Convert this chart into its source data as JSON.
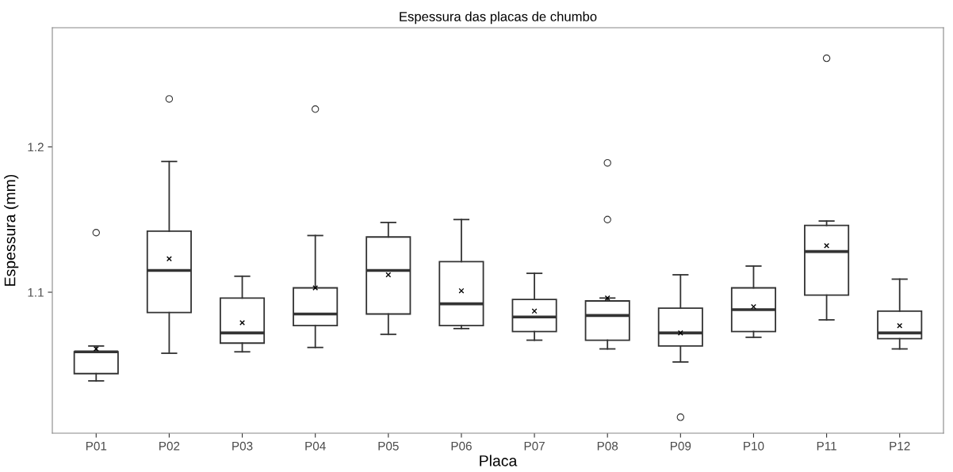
{
  "chart_data": {
    "type": "box",
    "title": "Espessura das placas de chumbo",
    "xlabel": "Placa",
    "ylabel": "Espessura (mm)",
    "categories": [
      "P01",
      "P02",
      "P03",
      "P04",
      "P05",
      "P06",
      "P07",
      "P08",
      "P09",
      "P10",
      "P11",
      "P12"
    ],
    "color": "#333333",
    "grid": false,
    "legend": false,
    "ylim": [
      1.003,
      1.282
    ],
    "yticks": [
      1.1,
      1.2
    ],
    "boxes": [
      {
        "low": 1.039,
        "q1": 1.044,
        "median": 1.059,
        "q3": 1.059,
        "high": 1.063,
        "mean": 1.061,
        "outliers": [
          1.141
        ]
      },
      {
        "low": 1.058,
        "q1": 1.086,
        "median": 1.115,
        "q3": 1.142,
        "high": 1.19,
        "mean": 1.123,
        "outliers": [
          1.233
        ]
      },
      {
        "low": 1.059,
        "q1": 1.065,
        "median": 1.072,
        "q3": 1.096,
        "high": 1.111,
        "mean": 1.079
      },
      {
        "low": 1.062,
        "q1": 1.077,
        "median": 1.085,
        "q3": 1.103,
        "high": 1.139,
        "mean": 1.103,
        "outliers": [
          1.226
        ]
      },
      {
        "low": 1.071,
        "q1": 1.085,
        "median": 1.115,
        "q3": 1.138,
        "high": 1.148,
        "mean": 1.112
      },
      {
        "low": 1.075,
        "q1": 1.077,
        "median": 1.092,
        "q3": 1.121,
        "high": 1.15,
        "mean": 1.101
      },
      {
        "low": 1.067,
        "q1": 1.073,
        "median": 1.083,
        "q3": 1.095,
        "high": 1.113,
        "mean": 1.087
      },
      {
        "low": 1.061,
        "q1": 1.067,
        "median": 1.084,
        "q3": 1.094,
        "high": 1.096,
        "mean": 1.096,
        "outliers": [
          1.189,
          1.15
        ]
      },
      {
        "low": 1.052,
        "q1": 1.063,
        "median": 1.072,
        "q3": 1.089,
        "high": 1.112,
        "mean": 1.072,
        "outliers": [
          1.014
        ]
      },
      {
        "low": 1.069,
        "q1": 1.073,
        "median": 1.088,
        "q3": 1.103,
        "high": 1.118,
        "mean": 1.09
      },
      {
        "low": 1.081,
        "q1": 1.098,
        "median": 1.128,
        "q3": 1.146,
        "high": 1.149,
        "mean": 1.132,
        "outliers": [
          1.261
        ]
      },
      {
        "low": 1.061,
        "q1": 1.068,
        "median": 1.072,
        "q3": 1.087,
        "high": 1.109,
        "mean": 1.077
      }
    ]
  }
}
